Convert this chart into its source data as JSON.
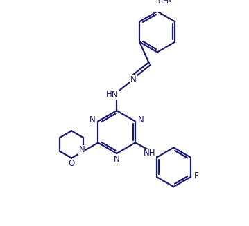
{
  "line_color": "#1a1a6e",
  "line_width": 1.6,
  "font_size": 8.5,
  "background_color": "#ffffff",
  "figsize": [
    3.59,
    3.27
  ],
  "dpi": 100,
  "xlim": [
    0,
    9
  ],
  "ylim": [
    0,
    8.2
  ]
}
